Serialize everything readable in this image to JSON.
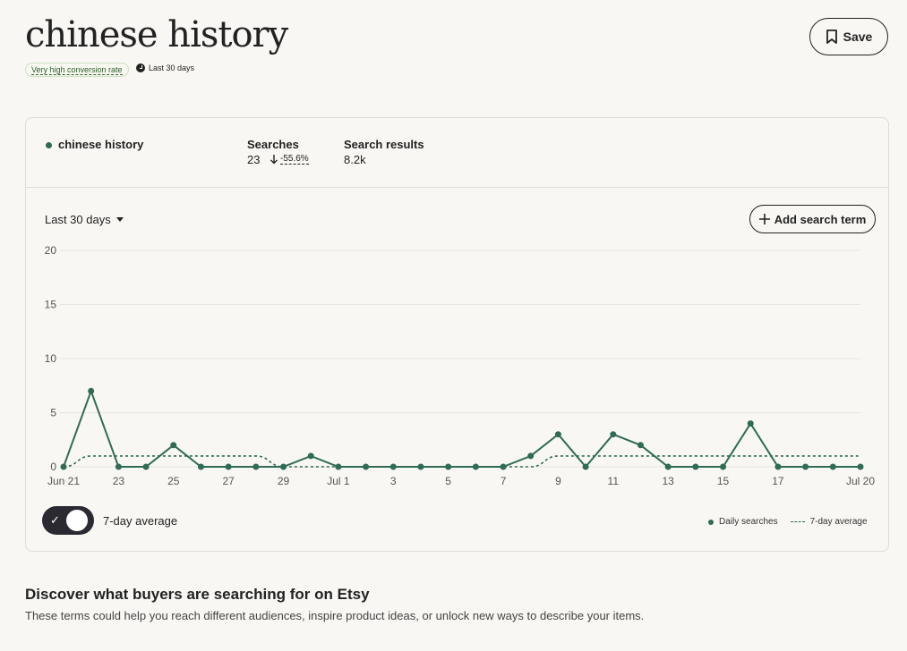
{
  "header": {
    "title": "chinese history",
    "badge": "Very high conversion rate",
    "period": "Last 30 days",
    "save_label": "Save"
  },
  "stats": {
    "term": "chinese history",
    "searches_label": "Searches",
    "searches_value": "23",
    "searches_change": "-55.6%",
    "results_label": "Search results",
    "results_value": "8.2k"
  },
  "controls": {
    "range": "Last 30 days",
    "add_label": "Add search term",
    "toggle_label": "7-day average"
  },
  "legend": {
    "daily": "Daily searches",
    "avg": "7-day average"
  },
  "colors": {
    "series": "#2f6b55",
    "background": "#f8f7f3"
  },
  "chart_data": {
    "type": "line",
    "x": [
      "Jun 21",
      "Jun 22",
      "Jun 23",
      "Jun 24",
      "Jun 25",
      "Jun 26",
      "Jun 27",
      "Jun 28",
      "Jun 29",
      "Jun 30",
      "Jul 1",
      "Jul 2",
      "Jul 3",
      "Jul 4",
      "Jul 5",
      "Jul 6",
      "Jul 7",
      "Jul 8",
      "Jul 9",
      "Jul 10",
      "Jul 11",
      "Jul 12",
      "Jul 13",
      "Jul 14",
      "Jul 15",
      "Jul 16",
      "Jul 17",
      "Jul 18",
      "Jul 19",
      "Jul 20"
    ],
    "x_tick_labels": [
      "Jun 21",
      "23",
      "25",
      "27",
      "29",
      "Jul 1",
      "3",
      "5",
      "7",
      "9",
      "11",
      "13",
      "15",
      "17",
      "Jul 20"
    ],
    "x_tick_indices": [
      0,
      2,
      4,
      6,
      8,
      10,
      12,
      14,
      16,
      18,
      20,
      22,
      24,
      26,
      29
    ],
    "series": [
      {
        "name": "Daily searches",
        "style": "solid-markers",
        "values": [
          0,
          7,
          0,
          0,
          2,
          0,
          0,
          0,
          0,
          1,
          0,
          0,
          0,
          0,
          0,
          0,
          0,
          1,
          3,
          0,
          3,
          2,
          0,
          0,
          0,
          4,
          0,
          0,
          0,
          0
        ]
      },
      {
        "name": "7-day average",
        "style": "dashed",
        "values": [
          0,
          1,
          1,
          1,
          1,
          1,
          1,
          1,
          0,
          0,
          0,
          0,
          0,
          0,
          0,
          0,
          0,
          0,
          1,
          1,
          1,
          1,
          1,
          1,
          1,
          1,
          1,
          1,
          1,
          1
        ]
      }
    ],
    "y_ticks": [
      0,
      5,
      10,
      15,
      20
    ],
    "ylim": [
      0,
      20
    ],
    "grid": true,
    "legend_position": "bottom-right"
  }
}
